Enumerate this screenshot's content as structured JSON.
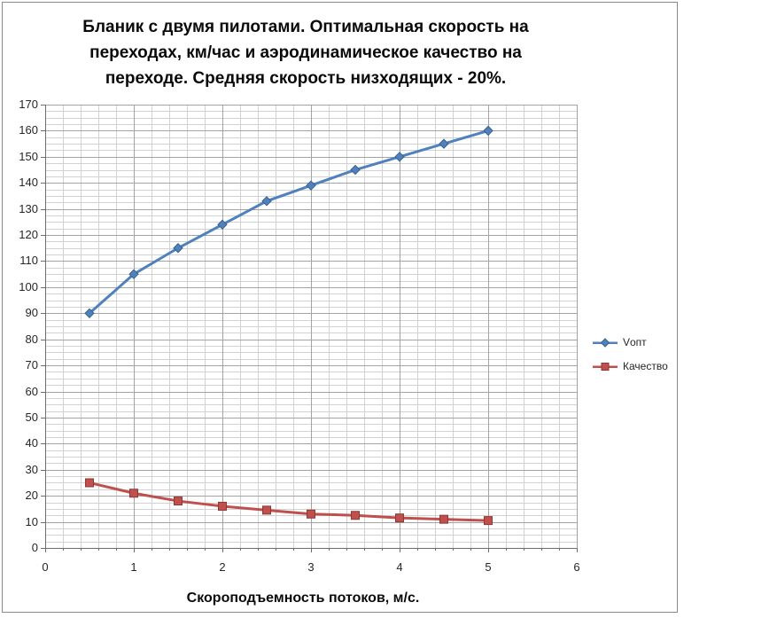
{
  "chart": {
    "title_lines": [
      "Бланик с двумя пилотами. Оптимальная скорость на",
      "переходах, км/час и аэродинамическое качество на",
      "переходе. Средняя скорость низходящих - 20%."
    ],
    "x_axis_title": "Скороподъемность потоков, м/с."
  },
  "chart_data": {
    "type": "line",
    "title": "Бланик с двумя пилотами. Оптимальная скорость на переходах, км/час и аэродинамическое качество на переходе. Средняя скорость низходящих - 20%.",
    "xlabel": "Скороподъемность потоков, м/с.",
    "ylabel": "",
    "x": [
      0.5,
      1,
      1.5,
      2,
      2.5,
      3,
      3.5,
      4,
      4.5,
      5
    ],
    "series": [
      {
        "name": "Vопт",
        "marker": "diamond",
        "color": "#4F81BD",
        "edge": "#39618C",
        "values": [
          90,
          105,
          115,
          124,
          133,
          139,
          145,
          150,
          155,
          160
        ]
      },
      {
        "name": "Качество",
        "marker": "square",
        "color": "#C0504D",
        "edge": "#8E3835",
        "values": [
          25,
          21,
          18,
          16,
          14.5,
          13,
          12.5,
          11.5,
          11,
          10.5
        ]
      }
    ],
    "xlim": [
      0,
      6
    ],
    "ylim": [
      0,
      170
    ],
    "x_ticks": [
      0,
      1,
      2,
      3,
      4,
      5,
      6
    ],
    "y_ticks": [
      0,
      10,
      20,
      30,
      40,
      50,
      60,
      70,
      80,
      90,
      100,
      110,
      120,
      130,
      140,
      150,
      160,
      170
    ],
    "x_minor_step": 0.2,
    "y_minor_step": 2.5,
    "grid": true,
    "legend_position": "right"
  },
  "colors": {
    "background": "#FFFFFF",
    "frame_border": "#8A8A8A",
    "axis": "#6E6E6E",
    "major_grid": "#A3A3A3",
    "minor_grid": "#D2D2D2",
    "text": "#262626"
  }
}
